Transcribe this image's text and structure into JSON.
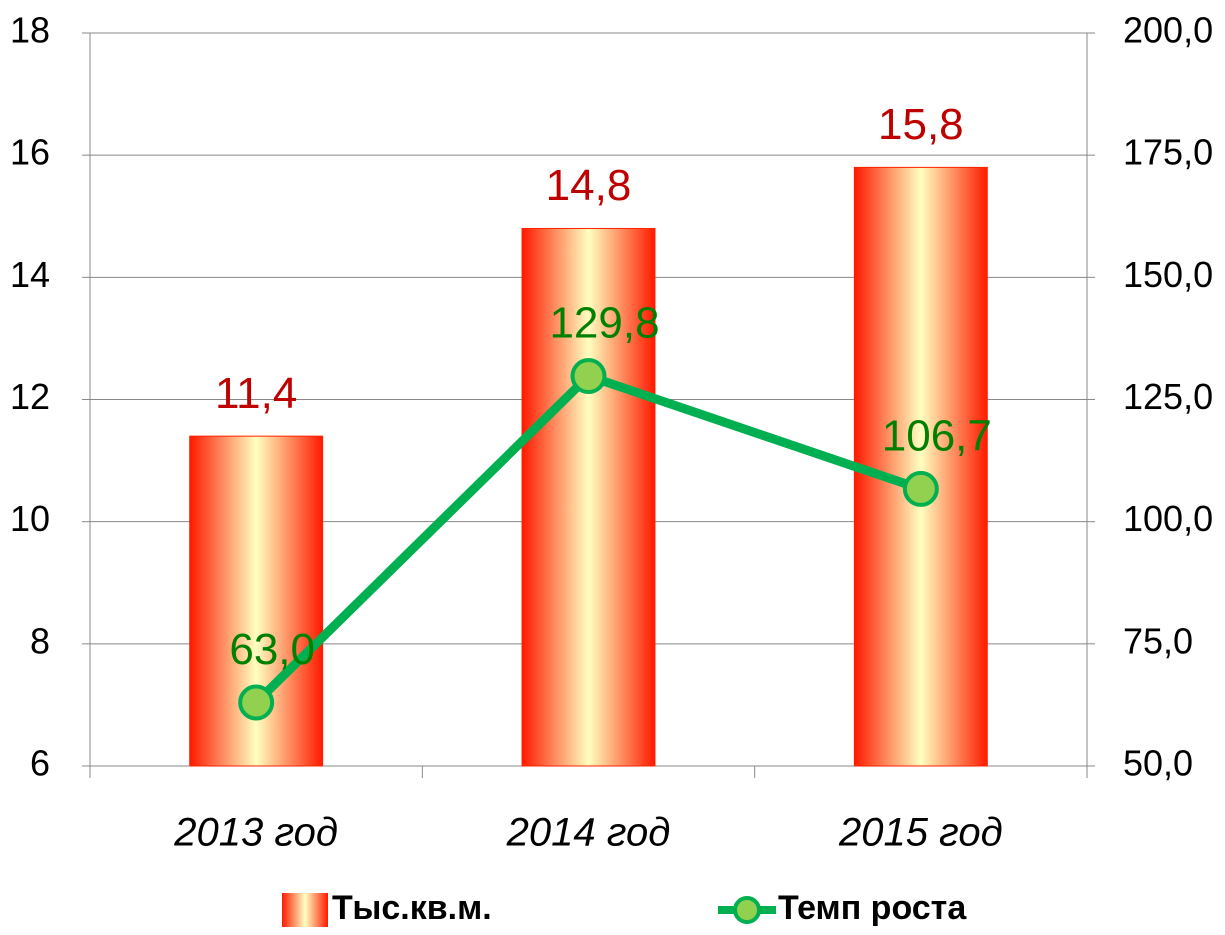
{
  "chart_data": {
    "type": "bar",
    "categories": [
      "2013 год",
      "2014 год",
      "2015 год"
    ],
    "series": [
      {
        "name": "Тыс.кв.м.",
        "type": "bar",
        "color": "#ff2200",
        "values": [
          11.4,
          14.8,
          15.8
        ],
        "value_labels": [
          "11,4",
          "14,8",
          "15,8"
        ],
        "label_color": "#c00000"
      },
      {
        "name": "Темп роста",
        "type": "line",
        "axis": "y2",
        "color": "#00b050",
        "marker_color": "#92d050",
        "values": [
          63.0,
          129.8,
          106.7
        ],
        "value_labels": [
          "63,0",
          "129,8",
          "106,7"
        ],
        "label_color": "#008000"
      }
    ],
    "ylim": [
      6,
      18
    ],
    "yticks": [
      6,
      8,
      10,
      12,
      14,
      16,
      18
    ],
    "y2lim": [
      50,
      200
    ],
    "y2ticks": [
      {
        "value": 50,
        "label": "50,0"
      },
      {
        "value": 75,
        "label": "75,0"
      },
      {
        "value": 100,
        "label": "100,0"
      },
      {
        "value": 125,
        "label": "125,0"
      },
      {
        "value": 150,
        "label": "150,0"
      },
      {
        "value": 175,
        "label": "175,0"
      },
      {
        "value": 200,
        "label": "200,0"
      }
    ],
    "grid": true,
    "legend": "bottom"
  }
}
